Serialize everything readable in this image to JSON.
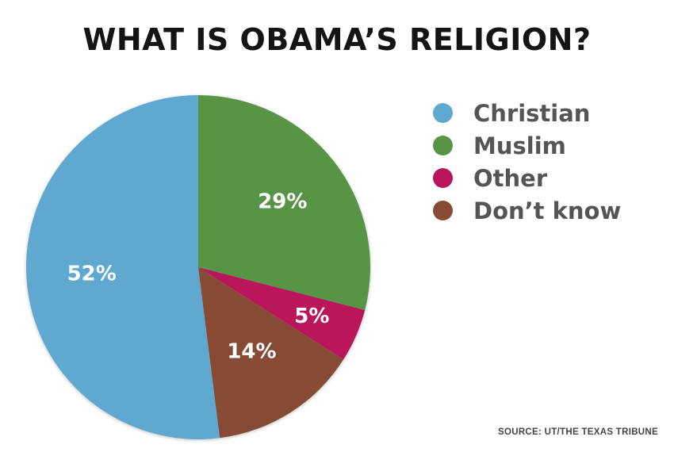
{
  "title": "WHAT IS OBAMA’S RELIGION?",
  "source": "SOURCE:  UT/THE TEXAS TRIBUNE",
  "chart_data": {
    "type": "pie",
    "title": "WHAT IS OBAMA’S RELIGION?",
    "slices": [
      {
        "label": "Christian",
        "value": 52,
        "display": "52%",
        "color": "#5fa8cf"
      },
      {
        "label": "Muslim",
        "value": 29,
        "display": "29%",
        "color": "#599444"
      },
      {
        "label": "Other",
        "value": 5,
        "display": "5%",
        "color": "#b9155c"
      },
      {
        "label": "Don’t know",
        "value": 14,
        "display": "14%",
        "color": "#874b35"
      }
    ],
    "legend_position": "right"
  }
}
